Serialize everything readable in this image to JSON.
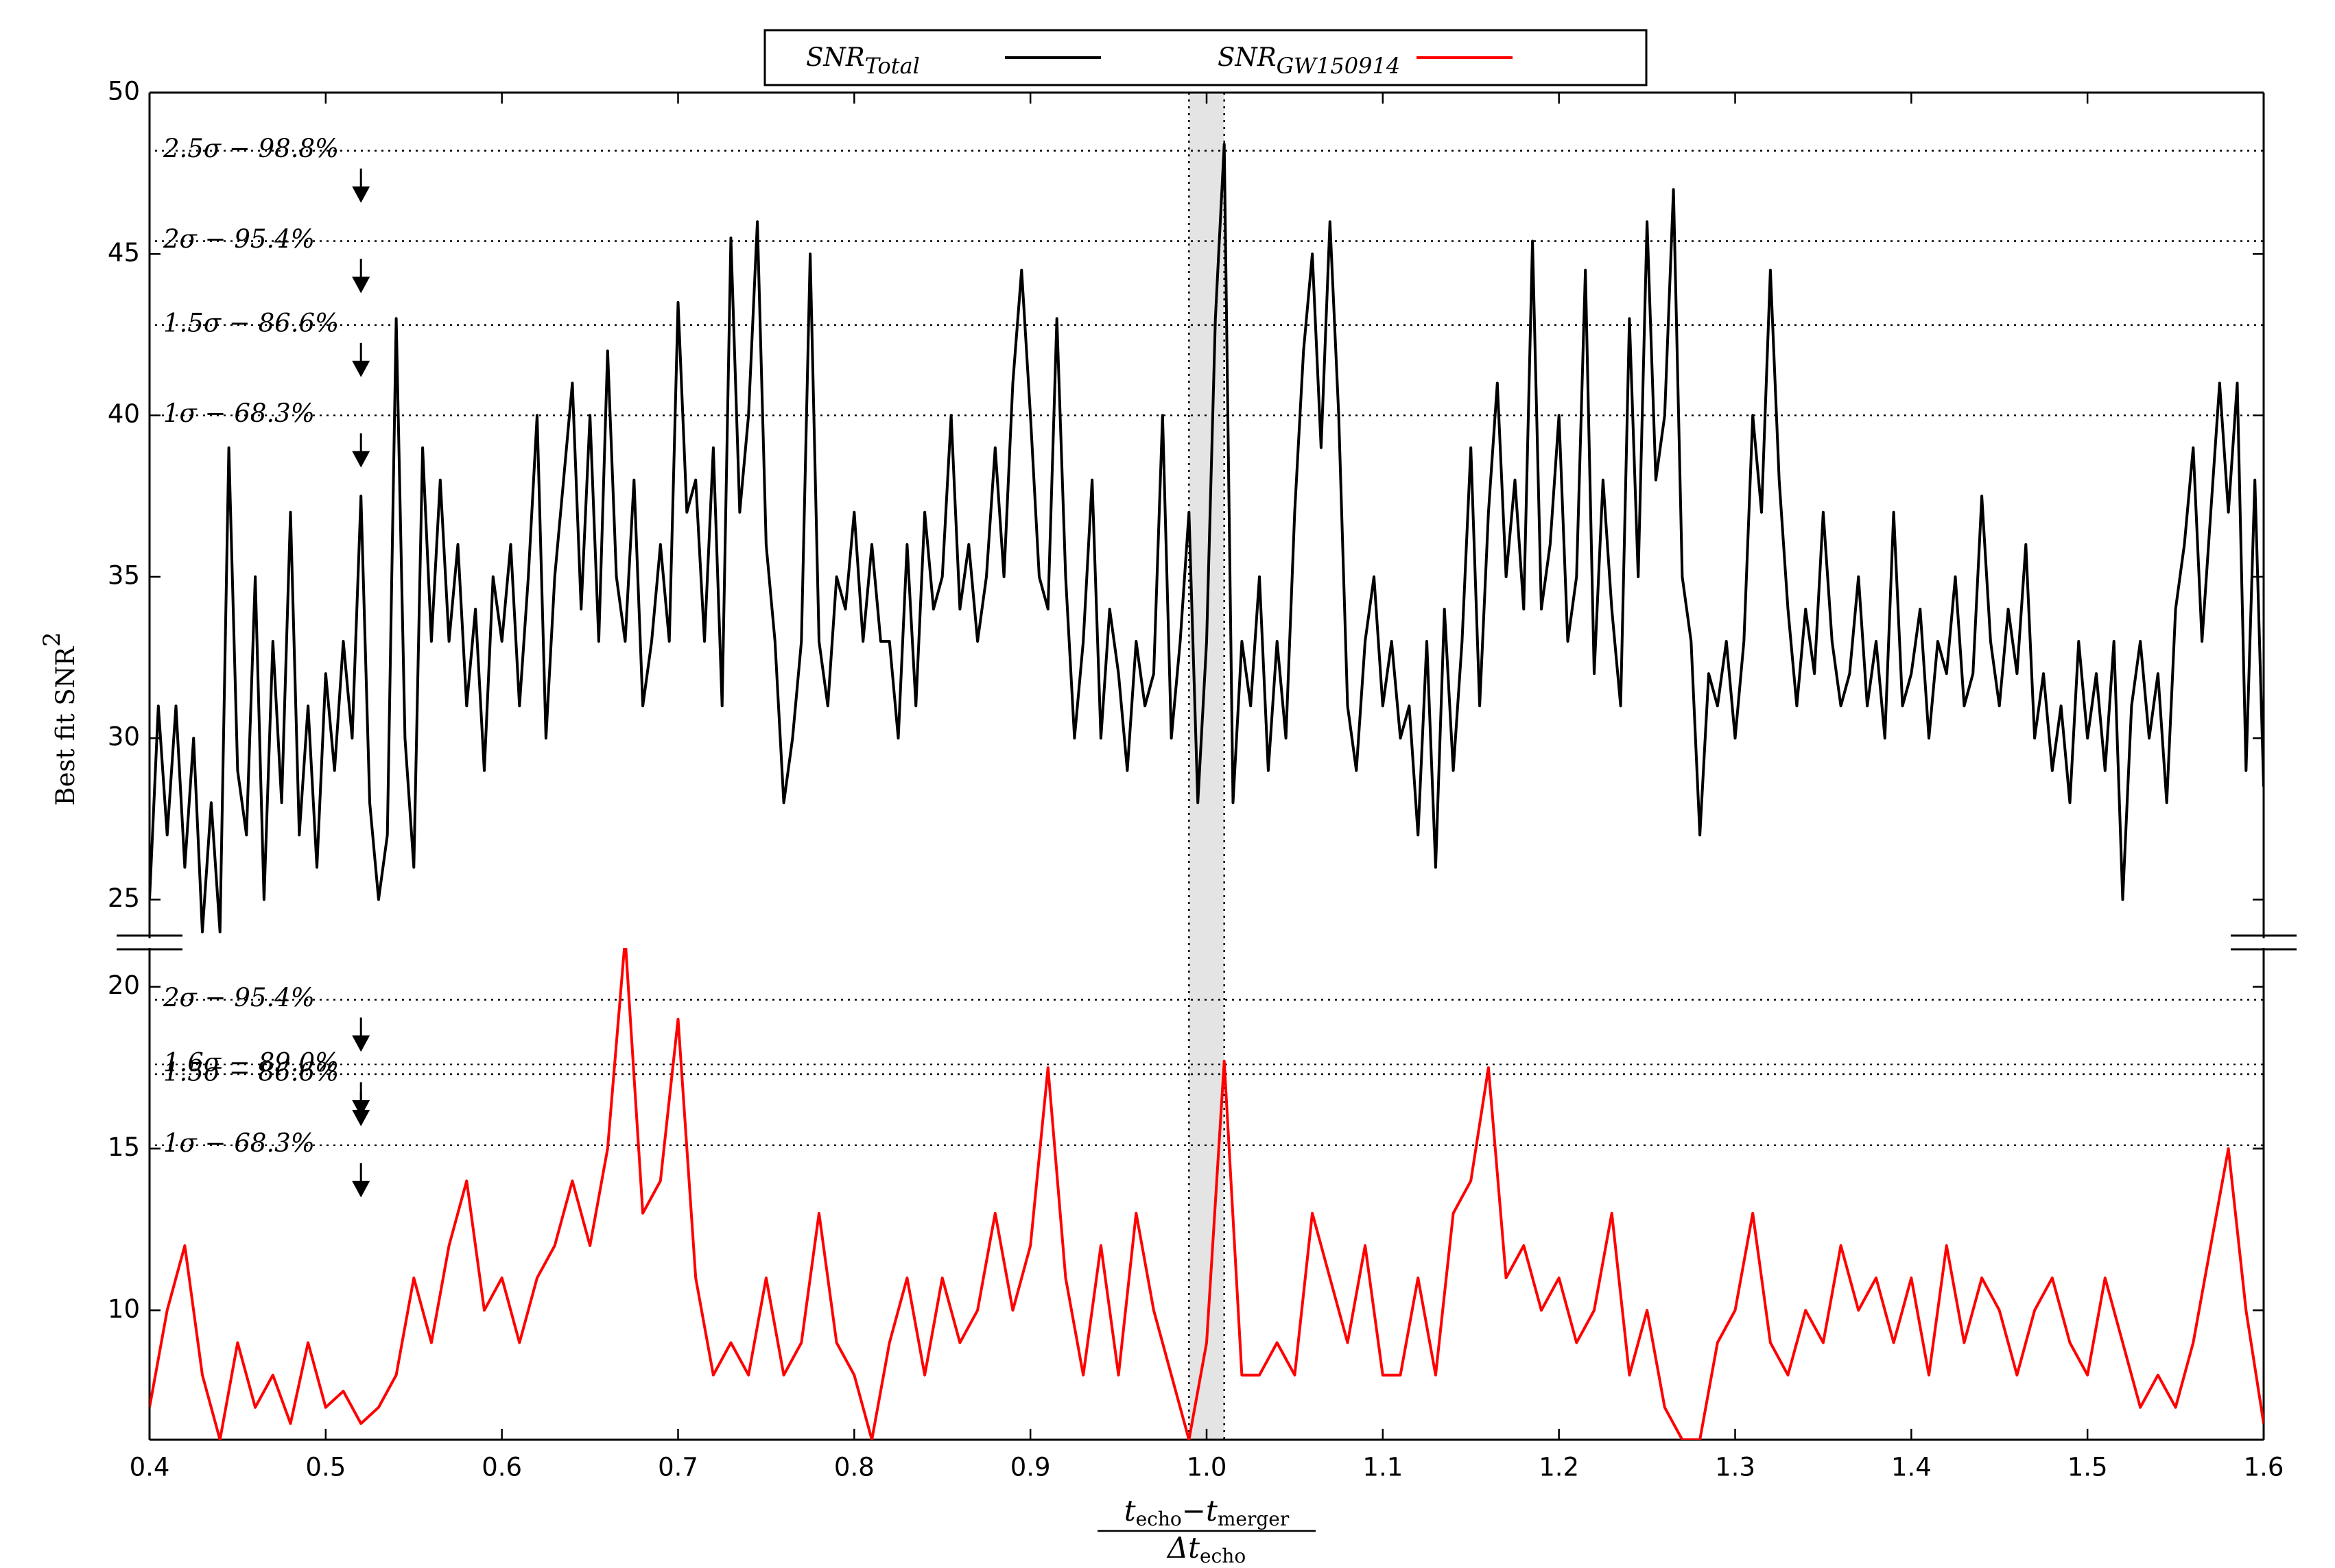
{
  "chart_data": [
    {
      "type": "line",
      "legend": "upper center",
      "ylabel": {
        "text": "Best fit SNR",
        "superscript": "2"
      },
      "xlim": [
        0.4,
        1.6
      ],
      "ylim": [
        23.8,
        50
      ],
      "yticks": [
        25,
        30,
        35,
        40,
        45,
        50
      ],
      "grid": false,
      "shaded_region": [
        0.99,
        1.01
      ],
      "thresholds": [
        {
          "value": 48.2,
          "label": "2.5σ − 98.8%"
        },
        {
          "value": 45.4,
          "label": "2σ − 95.4%"
        },
        {
          "value": 42.8,
          "label": "1.5σ − 86.6%"
        },
        {
          "value": 40.0,
          "label": "1σ − 68.3%"
        }
      ],
      "x": [
        0.4,
        0.405,
        0.41,
        0.415,
        0.42,
        0.425,
        0.43,
        0.435,
        0.44,
        0.445,
        0.45,
        0.455,
        0.46,
        0.465,
        0.47,
        0.475,
        0.48,
        0.485,
        0.49,
        0.495,
        0.5,
        0.505,
        0.51,
        0.515,
        0.52,
        0.525,
        0.53,
        0.535,
        0.54,
        0.545,
        0.55,
        0.555,
        0.56,
        0.565,
        0.57,
        0.575,
        0.58,
        0.585,
        0.59,
        0.595,
        0.6,
        0.605,
        0.61,
        0.615,
        0.62,
        0.625,
        0.63,
        0.635,
        0.64,
        0.645,
        0.65,
        0.655,
        0.66,
        0.665,
        0.67,
        0.675,
        0.68,
        0.685,
        0.69,
        0.695,
        0.7,
        0.705,
        0.71,
        0.715,
        0.72,
        0.725,
        0.73,
        0.735,
        0.74,
        0.745,
        0.75,
        0.755,
        0.76,
        0.765,
        0.77,
        0.775,
        0.78,
        0.785,
        0.79,
        0.795,
        0.8,
        0.805,
        0.81,
        0.815,
        0.82,
        0.825,
        0.83,
        0.835,
        0.84,
        0.845,
        0.85,
        0.855,
        0.86,
        0.865,
        0.87,
        0.875,
        0.88,
        0.885,
        0.89,
        0.895,
        0.9,
        0.905,
        0.91,
        0.915,
        0.92,
        0.925,
        0.93,
        0.935,
        0.94,
        0.945,
        0.95,
        0.955,
        0.96,
        0.965,
        0.97,
        0.975,
        0.98,
        0.985,
        0.99,
        0.995,
        1.0,
        1.005,
        1.01,
        1.015,
        1.02,
        1.025,
        1.03,
        1.035,
        1.04,
        1.045,
        1.05,
        1.055,
        1.06,
        1.065,
        1.07,
        1.075,
        1.08,
        1.085,
        1.09,
        1.095,
        1.1,
        1.105,
        1.11,
        1.115,
        1.12,
        1.125,
        1.13,
        1.135,
        1.14,
        1.145,
        1.15,
        1.155,
        1.16,
        1.165,
        1.17,
        1.175,
        1.18,
        1.185,
        1.19,
        1.195,
        1.2,
        1.205,
        1.21,
        1.215,
        1.22,
        1.225,
        1.23,
        1.235,
        1.24,
        1.245,
        1.25,
        1.255,
        1.26,
        1.265,
        1.27,
        1.275,
        1.28,
        1.285,
        1.29,
        1.295,
        1.3,
        1.305,
        1.31,
        1.315,
        1.32,
        1.325,
        1.33,
        1.335,
        1.34,
        1.345,
        1.35,
        1.355,
        1.36,
        1.365,
        1.37,
        1.375,
        1.38,
        1.385,
        1.39,
        1.395,
        1.4,
        1.405,
        1.41,
        1.415,
        1.42,
        1.425,
        1.43,
        1.435,
        1.44,
        1.445,
        1.45,
        1.455,
        1.46,
        1.465,
        1.47,
        1.475,
        1.48,
        1.485,
        1.49,
        1.495,
        1.5,
        1.505,
        1.51,
        1.515,
        1.52,
        1.525,
        1.53,
        1.535,
        1.54,
        1.545,
        1.55,
        1.555,
        1.56,
        1.565,
        1.57,
        1.575,
        1.58,
        1.585,
        1.59,
        1.595,
        1.6
      ],
      "series": [
        {
          "name": "SNR",
          "name_subscript": "Total",
          "color": "#000000",
          "values": [
            25,
            31,
            27,
            31,
            26,
            30,
            24,
            28,
            24,
            39,
            29,
            27,
            35,
            25,
            33,
            28,
            37,
            27,
            31,
            26,
            32,
            29,
            33,
            30,
            37.5,
            28,
            25,
            27,
            43,
            30,
            26,
            39,
            33,
            38,
            33,
            36,
            31,
            34,
            29,
            35,
            33,
            36,
            31,
            35,
            40,
            30,
            35,
            38,
            41,
            34,
            40,
            33,
            42,
            35,
            33,
            38,
            31,
            33,
            36,
            33,
            43.5,
            37,
            38,
            33,
            39,
            31,
            45.5,
            37,
            40,
            46,
            36,
            33,
            28,
            30,
            33,
            45,
            33,
            31,
            35,
            34,
            37,
            33,
            36,
            33,
            33,
            30,
            36,
            31,
            37,
            34,
            35,
            40,
            34,
            36,
            33,
            35,
            39,
            35,
            41,
            44.5,
            40,
            35,
            34,
            43,
            35,
            30,
            33,
            38,
            30,
            34,
            32,
            29,
            33,
            31,
            32,
            40,
            30,
            33,
            37,
            28,
            33,
            43,
            48.4,
            28,
            33,
            31,
            35,
            29,
            33,
            30,
            37,
            42,
            45,
            39,
            46,
            40,
            31,
            29,
            33,
            35,
            31,
            33,
            30,
            31,
            27,
            33,
            26,
            34,
            29,
            33,
            39,
            31,
            37,
            41,
            35,
            38,
            34,
            45.4,
            34,
            36,
            40,
            33,
            35,
            44.5,
            32,
            38,
            34,
            31,
            43,
            35,
            46,
            38,
            40,
            47,
            35,
            33,
            27,
            32,
            31,
            33,
            30,
            33,
            40,
            37,
            44.5,
            38,
            34,
            31,
            34,
            32,
            37,
            33,
            31,
            32,
            35,
            31,
            33,
            30,
            37,
            31,
            32,
            34,
            30,
            33,
            32,
            35,
            31,
            32,
            37.5,
            33,
            31,
            34,
            32,
            36,
            30,
            32,
            29,
            31,
            28,
            33,
            30,
            32,
            29,
            33,
            25,
            31,
            33,
            30,
            32,
            28,
            34,
            36,
            39,
            33,
            37,
            41,
            37,
            41,
            29,
            38,
            28.5
          ]
        }
      ]
    },
    {
      "type": "line",
      "xlabel": {
        "numerator": [
          {
            "text": "t",
            "sub": false
          },
          {
            "text": "echo",
            "sub": true
          },
          {
            "text": "−t",
            "sub": false
          },
          {
            "text": "merger",
            "sub": true
          }
        ],
        "denominator": [
          {
            "text": "Δt",
            "sub": false
          },
          {
            "text": "echo",
            "sub": true
          }
        ]
      },
      "xlim": [
        0.4,
        1.6
      ],
      "xticks": [
        0.4,
        0.5,
        0.6,
        0.7,
        0.8,
        0.9,
        {
          "value": 1,
          "label": "1.0"
        },
        1.1,
        1.2,
        1.3,
        1.4,
        1.5,
        1.6
      ],
      "ylim": [
        6,
        21.2
      ],
      "yticks": [
        10,
        15,
        20
      ],
      "grid": false,
      "thresholds": [
        {
          "value": 19.6,
          "label": "2σ − 95.4%"
        },
        {
          "value": 17.6,
          "label": "1.6σ − 89.0%"
        },
        {
          "value": 17.3,
          "label": "1.5σ − 86.6%"
        },
        {
          "value": 15.1,
          "label": "1σ − 68.3%"
        }
      ],
      "x": [
        0.4,
        0.41,
        0.42,
        0.43,
        0.44,
        0.45,
        0.46,
        0.47,
        0.48,
        0.49,
        0.5,
        0.51,
        0.52,
        0.53,
        0.54,
        0.55,
        0.56,
        0.57,
        0.58,
        0.59,
        0.6,
        0.61,
        0.62,
        0.63,
        0.64,
        0.65,
        0.66,
        0.67,
        0.68,
        0.69,
        0.7,
        0.71,
        0.72,
        0.73,
        0.74,
        0.75,
        0.76,
        0.77,
        0.78,
        0.79,
        0.8,
        0.81,
        0.82,
        0.83,
        0.84,
        0.85,
        0.86,
        0.87,
        0.88,
        0.89,
        0.9,
        0.91,
        0.92,
        0.93,
        0.94,
        0.95,
        0.96,
        0.97,
        0.98,
        0.99,
        1.0,
        1.01,
        1.02,
        1.03,
        1.04,
        1.05,
        1.06,
        1.07,
        1.08,
        1.09,
        1.1,
        1.11,
        1.12,
        1.13,
        1.14,
        1.15,
        1.16,
        1.17,
        1.18,
        1.19,
        1.2,
        1.21,
        1.22,
        1.23,
        1.24,
        1.25,
        1.26,
        1.27,
        1.28,
        1.29,
        1.3,
        1.31,
        1.32,
        1.33,
        1.34,
        1.35,
        1.36,
        1.37,
        1.38,
        1.39,
        1.4,
        1.41,
        1.42,
        1.43,
        1.44,
        1.45,
        1.46,
        1.47,
        1.48,
        1.49,
        1.5,
        1.51,
        1.52,
        1.53,
        1.54,
        1.55,
        1.56,
        1.57,
        1.58,
        1.59,
        1.6
      ],
      "series": [
        {
          "name": "SNR",
          "name_subscript": "GW150914",
          "color": "#ff0000",
          "values": [
            7,
            10,
            12,
            8,
            6,
            9,
            7,
            8,
            6.5,
            9,
            7,
            7.5,
            6.5,
            7,
            8,
            11,
            9,
            12,
            14,
            10,
            11,
            9,
            11,
            12,
            14,
            12,
            15,
            21.5,
            13,
            14,
            19,
            11,
            8,
            9,
            8,
            11,
            8,
            9,
            13,
            9,
            8,
            6,
            9,
            11,
            8,
            11,
            9,
            10,
            13,
            10,
            12,
            17.5,
            11,
            8,
            12,
            8,
            13,
            10,
            8,
            6,
            9,
            17.7,
            8,
            8,
            9,
            8,
            13,
            11,
            9,
            12,
            8,
            8,
            11,
            8,
            13,
            14,
            17.5,
            11,
            12,
            10,
            11,
            9,
            10,
            13,
            8,
            10,
            7,
            6,
            6,
            9,
            10,
            13,
            9,
            8,
            10,
            9,
            12,
            10,
            11,
            9,
            11,
            8,
            12,
            9,
            11,
            10,
            8,
            10,
            11,
            9,
            8,
            11,
            9,
            7,
            8,
            7,
            9,
            12,
            15,
            10,
            6.5
          ]
        }
      ]
    }
  ]
}
